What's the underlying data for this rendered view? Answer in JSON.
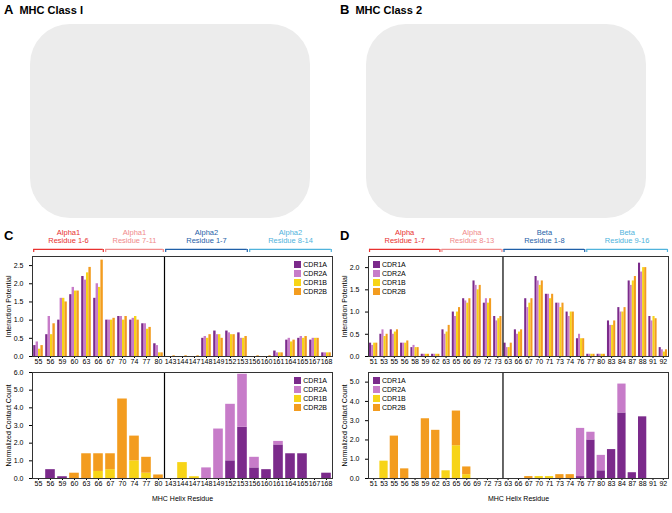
{
  "figure": {
    "panels": [
      {
        "label": "A",
        "title": "MHC Class I"
      },
      {
        "label": "B",
        "title": "MHC Class 2"
      }
    ]
  },
  "chart_data": [
    {
      "type": "bar",
      "panel": "C",
      "y_label": "Interaction Potential",
      "legend": "top-right",
      "stacked": false,
      "groups": [
        {
          "label": [
            "Alpha1",
            "Residue 1-6"
          ],
          "color": "#e8312f",
          "first": "55",
          "last": "66"
        },
        {
          "label": [
            "Alpha1",
            "Residue 7-11"
          ],
          "color": "#f08a8a",
          "first": "67",
          "last": "80"
        },
        {
          "label": [
            "Alpha2",
            "Residue 1-7"
          ],
          "color": "#1f5fa8",
          "first": "143",
          "last": "153"
        },
        {
          "label": [
            "Alpha2",
            "Residue 8-14"
          ],
          "color": "#4fb3dc",
          "first": "156",
          "last": "168"
        }
      ],
      "categories": [
        "55",
        "56",
        "59",
        "60",
        "63",
        "66",
        "67",
        "70",
        "74",
        "77",
        "80",
        "143",
        "144",
        "147",
        "148",
        "149",
        "152",
        "153",
        "156",
        "160",
        "161",
        "164",
        "165",
        "167",
        "168"
      ],
      "ylim": [
        0,
        2.75
      ],
      "yticks": [
        0,
        0.5,
        1,
        1.5,
        2,
        2.5
      ],
      "series": [
        {
          "name": "CDR1A",
          "color": "#7b2a8b",
          "values": [
            0.3,
            0.6,
            1.0,
            1.7,
            2.2,
            1.6,
            1.0,
            1.1,
            1.0,
            0.9,
            0.35,
            0,
            0,
            0,
            0.5,
            0.7,
            0.7,
            0.65,
            0,
            0,
            0.15,
            0.45,
            0.5,
            0.45,
            0.1
          ]
        },
        {
          "name": "CDR2A",
          "color": "#c77cc9",
          "values": [
            0.4,
            1.1,
            1.6,
            1.9,
            2.1,
            2.0,
            1.0,
            1.1,
            1.05,
            0.9,
            0.3,
            0,
            0,
            0,
            0.55,
            0.6,
            0.65,
            0.5,
            0,
            0,
            0.1,
            0.5,
            0.55,
            0.5,
            0.1
          ]
        },
        {
          "name": "CDR1B",
          "color": "#f7d417",
          "values": [
            0.2,
            0.6,
            1.6,
            1.8,
            2.3,
            1.9,
            1.0,
            1.0,
            1.1,
            0.75,
            0.1,
            0,
            0,
            0,
            0.5,
            0.6,
            0.6,
            0.5,
            0,
            0,
            0.1,
            0.4,
            0.5,
            0.5,
            0.1
          ]
        },
        {
          "name": "CDR2B",
          "color": "#f39c1f",
          "values": [
            0.3,
            0.9,
            1.5,
            1.8,
            2.45,
            2.65,
            1.05,
            1.1,
            1.0,
            0.8,
            0.1,
            0.02,
            0.02,
            0.02,
            0.6,
            0.5,
            0.6,
            0.55,
            0.02,
            0.02,
            0.1,
            0.45,
            0.55,
            0.5,
            0.1
          ]
        }
      ]
    },
    {
      "type": "bar",
      "panel": "C",
      "y_label": "Normalized Contact Count",
      "x_label": "MHC Helix Residue",
      "legend": "top-right",
      "stacked": true,
      "categories": [
        "55",
        "56",
        "59",
        "60",
        "63",
        "66",
        "67",
        "70",
        "74",
        "77",
        "80",
        "143",
        "144",
        "147",
        "148",
        "149",
        "152",
        "153",
        "156",
        "160",
        "161",
        "164",
        "165",
        "167",
        "168"
      ],
      "ylim": [
        0,
        6
      ],
      "yticks": [
        0,
        1,
        2,
        3,
        4,
        5,
        6
      ],
      "series": [
        {
          "name": "CDR1A",
          "color": "#7b2a8b",
          "values": [
            0,
            0.5,
            0.1,
            0,
            0,
            0,
            0,
            0,
            0,
            0,
            0,
            0,
            0,
            0,
            0,
            0,
            1.0,
            2.9,
            0.6,
            0.5,
            1.9,
            1.4,
            1.4,
            0,
            0.3
          ]
        },
        {
          "name": "CDR2A",
          "color": "#c77cc9",
          "values": [
            0,
            0,
            0,
            0,
            0,
            0,
            0,
            0,
            0,
            0,
            0,
            0,
            0,
            0,
            0.6,
            2.8,
            3.2,
            3.0,
            0.6,
            0,
            0.2,
            0,
            0,
            0,
            0
          ]
        },
        {
          "name": "CDR1B",
          "color": "#f7d417",
          "values": [
            0,
            0,
            0,
            0,
            0,
            0.4,
            0.5,
            0,
            1.0,
            0.3,
            0,
            0,
            0.9,
            0.1,
            0,
            0,
            0,
            0,
            0,
            0,
            0,
            0,
            0,
            0,
            0
          ]
        },
        {
          "name": "CDR2B",
          "color": "#f39c1f",
          "values": [
            0,
            0,
            0,
            0.3,
            1.4,
            1.0,
            0.9,
            4.5,
            1.4,
            0.9,
            0.2,
            0,
            0,
            0,
            0,
            0,
            0,
            0,
            0,
            0,
            0,
            0,
            0,
            0,
            0
          ]
        }
      ]
    },
    {
      "type": "bar",
      "panel": "D",
      "y_label": "Interaction Potential",
      "legend": "top-left",
      "stacked": false,
      "groups": [
        {
          "label": [
            "Alpha",
            "Residue 1-7"
          ],
          "color": "#e8312f",
          "first": "51",
          "last": "62"
        },
        {
          "label": [
            "Alpha",
            "Residue 8-13"
          ],
          "color": "#f08a8a",
          "first": "63",
          "last": "73"
        },
        {
          "label": [
            "Beta",
            "Residue 1-8"
          ],
          "color": "#1f5fa8",
          "first": "63",
          "last": "76"
        },
        {
          "label": [
            "Beta",
            "Residue 9-16"
          ],
          "color": "#4fb3dc",
          "first": "77",
          "last": "92"
        }
      ],
      "categories": [
        "51",
        "53",
        "55",
        "56",
        "58",
        "59",
        "62",
        "63",
        "65",
        "66",
        "69",
        "72",
        "73",
        "63",
        "66",
        "67",
        "70",
        "71",
        "73",
        "74",
        "76",
        "77",
        "80",
        "83",
        "84",
        "87",
        "88",
        "91",
        "92"
      ],
      "ylim": [
        0,
        2.25
      ],
      "yticks": [
        0,
        0.5,
        1,
        1.5,
        2
      ],
      "series": [
        {
          "name": "CDR1A",
          "color": "#7b2a8b",
          "values": [
            0.3,
            0.5,
            0.6,
            0.3,
            0.2,
            0.05,
            0.05,
            0.6,
            1.0,
            1.3,
            1.7,
            1.2,
            0.9,
            0.3,
            0.6,
            1.3,
            1.8,
            1.4,
            1.2,
            1.0,
            0.4,
            0.05,
            0.05,
            0.8,
            1.1,
            1.7,
            2.1,
            0.9,
            0.2
          ]
        },
        {
          "name": "CDR2A",
          "color": "#c77cc9",
          "values": [
            0.25,
            0.6,
            0.5,
            0.3,
            0.25,
            0.05,
            0.05,
            0.5,
            0.9,
            1.25,
            1.6,
            1.3,
            0.8,
            0.2,
            0.5,
            1.1,
            1.7,
            1.4,
            1.2,
            0.9,
            0.5,
            0.05,
            0.05,
            0.7,
            1.0,
            1.6,
            1.9,
            0.8,
            0.15
          ]
        },
        {
          "name": "CDR1B",
          "color": "#f7d417",
          "values": [
            0.3,
            0.45,
            0.55,
            0.3,
            0.2,
            0.05,
            0.05,
            0.55,
            1.0,
            1.2,
            1.5,
            1.2,
            0.85,
            0.2,
            0.55,
            1.2,
            1.6,
            1.3,
            1.1,
            1.0,
            0.4,
            0.05,
            0.05,
            0.7,
            1.0,
            1.7,
            2.0,
            0.9,
            0.1
          ]
        },
        {
          "name": "CDR2B",
          "color": "#f39c1f",
          "values": [
            0.3,
            0.5,
            0.6,
            0.35,
            0.2,
            0.05,
            0.05,
            0.7,
            1.1,
            1.3,
            1.6,
            1.3,
            0.9,
            0.3,
            0.6,
            1.3,
            1.7,
            1.4,
            1.2,
            1.0,
            0.4,
            0.05,
            0.05,
            0.8,
            1.1,
            1.8,
            2.0,
            0.85,
            0.15
          ]
        }
      ]
    },
    {
      "type": "bar",
      "panel": "D",
      "y_label": "Normalized Contact Count",
      "x_label": "MHC Helix Residue",
      "legend": "top-left",
      "stacked": true,
      "categories": [
        "51",
        "53",
        "55",
        "56",
        "58",
        "59",
        "62",
        "63",
        "65",
        "66",
        "69",
        "72",
        "73",
        "63",
        "66",
        "67",
        "70",
        "71",
        "73",
        "74",
        "76",
        "77",
        "80",
        "83",
        "84",
        "87",
        "88",
        "91",
        "92"
      ],
      "ylim": [
        0,
        5.5
      ],
      "yticks": [
        0,
        1,
        2,
        3,
        4,
        5
      ],
      "series": [
        {
          "name": "CDR1A",
          "color": "#7b2a8b",
          "values": [
            0,
            0,
            0,
            0,
            0,
            0,
            0,
            0,
            0,
            0,
            0,
            0,
            0,
            0,
            0,
            0,
            0,
            0,
            0,
            0,
            0.1,
            2.0,
            0.4,
            1.5,
            3.4,
            0.3,
            3.2,
            0,
            0
          ]
        },
        {
          "name": "CDR2A",
          "color": "#c77cc9",
          "values": [
            0,
            0,
            0,
            0,
            0,
            0,
            0,
            0,
            0,
            0,
            0,
            0,
            0,
            0,
            0,
            0,
            0,
            0,
            0,
            0,
            2.5,
            0.4,
            0.8,
            0,
            1.5,
            0,
            0,
            0,
            0
          ]
        },
        {
          "name": "CDR1B",
          "color": "#f7d417",
          "values": [
            0,
            0.9,
            0,
            0,
            0,
            0,
            0,
            0.4,
            1.7,
            0.2,
            0,
            0,
            0,
            0,
            0,
            0,
            0.1,
            0.1,
            0,
            0,
            0,
            0,
            0,
            0,
            0,
            0,
            0,
            0,
            0
          ]
        },
        {
          "name": "CDR2B",
          "color": "#f39c1f",
          "values": [
            0,
            0,
            2.2,
            0.5,
            0,
            3.1,
            2.5,
            0,
            1.8,
            0.4,
            0,
            0,
            0,
            0,
            0,
            0.1,
            0,
            0,
            0.2,
            0.2,
            0,
            0,
            0,
            0,
            0,
            0,
            0,
            0,
            0
          ]
        }
      ]
    }
  ]
}
